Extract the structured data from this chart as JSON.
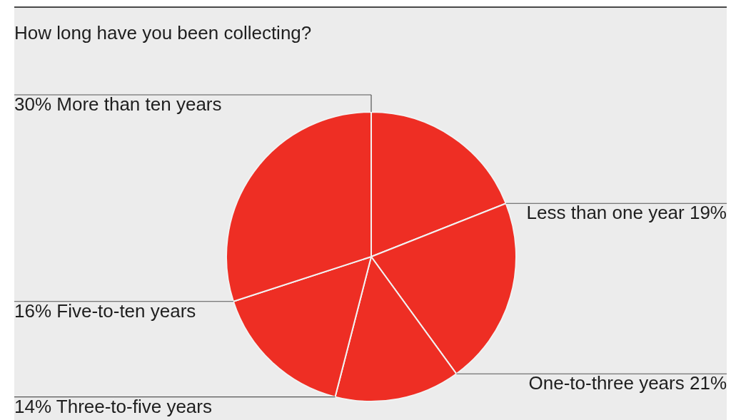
{
  "chart_data": {
    "type": "pie",
    "title": "How long have you been collecting?",
    "categories": [
      "Less than one year",
      "One-to-three years",
      "Three-to-five years",
      "Five-to-ten years",
      "More than ten years"
    ],
    "values": [
      19,
      21,
      14,
      16,
      30
    ],
    "value_labels": [
      "19%",
      "21%",
      "14%",
      "16%",
      "30%"
    ],
    "colors": [
      "#ee2e24",
      "#ee2e24",
      "#ee2e24",
      "#ee2e24",
      "#ee2e24"
    ]
  }
}
